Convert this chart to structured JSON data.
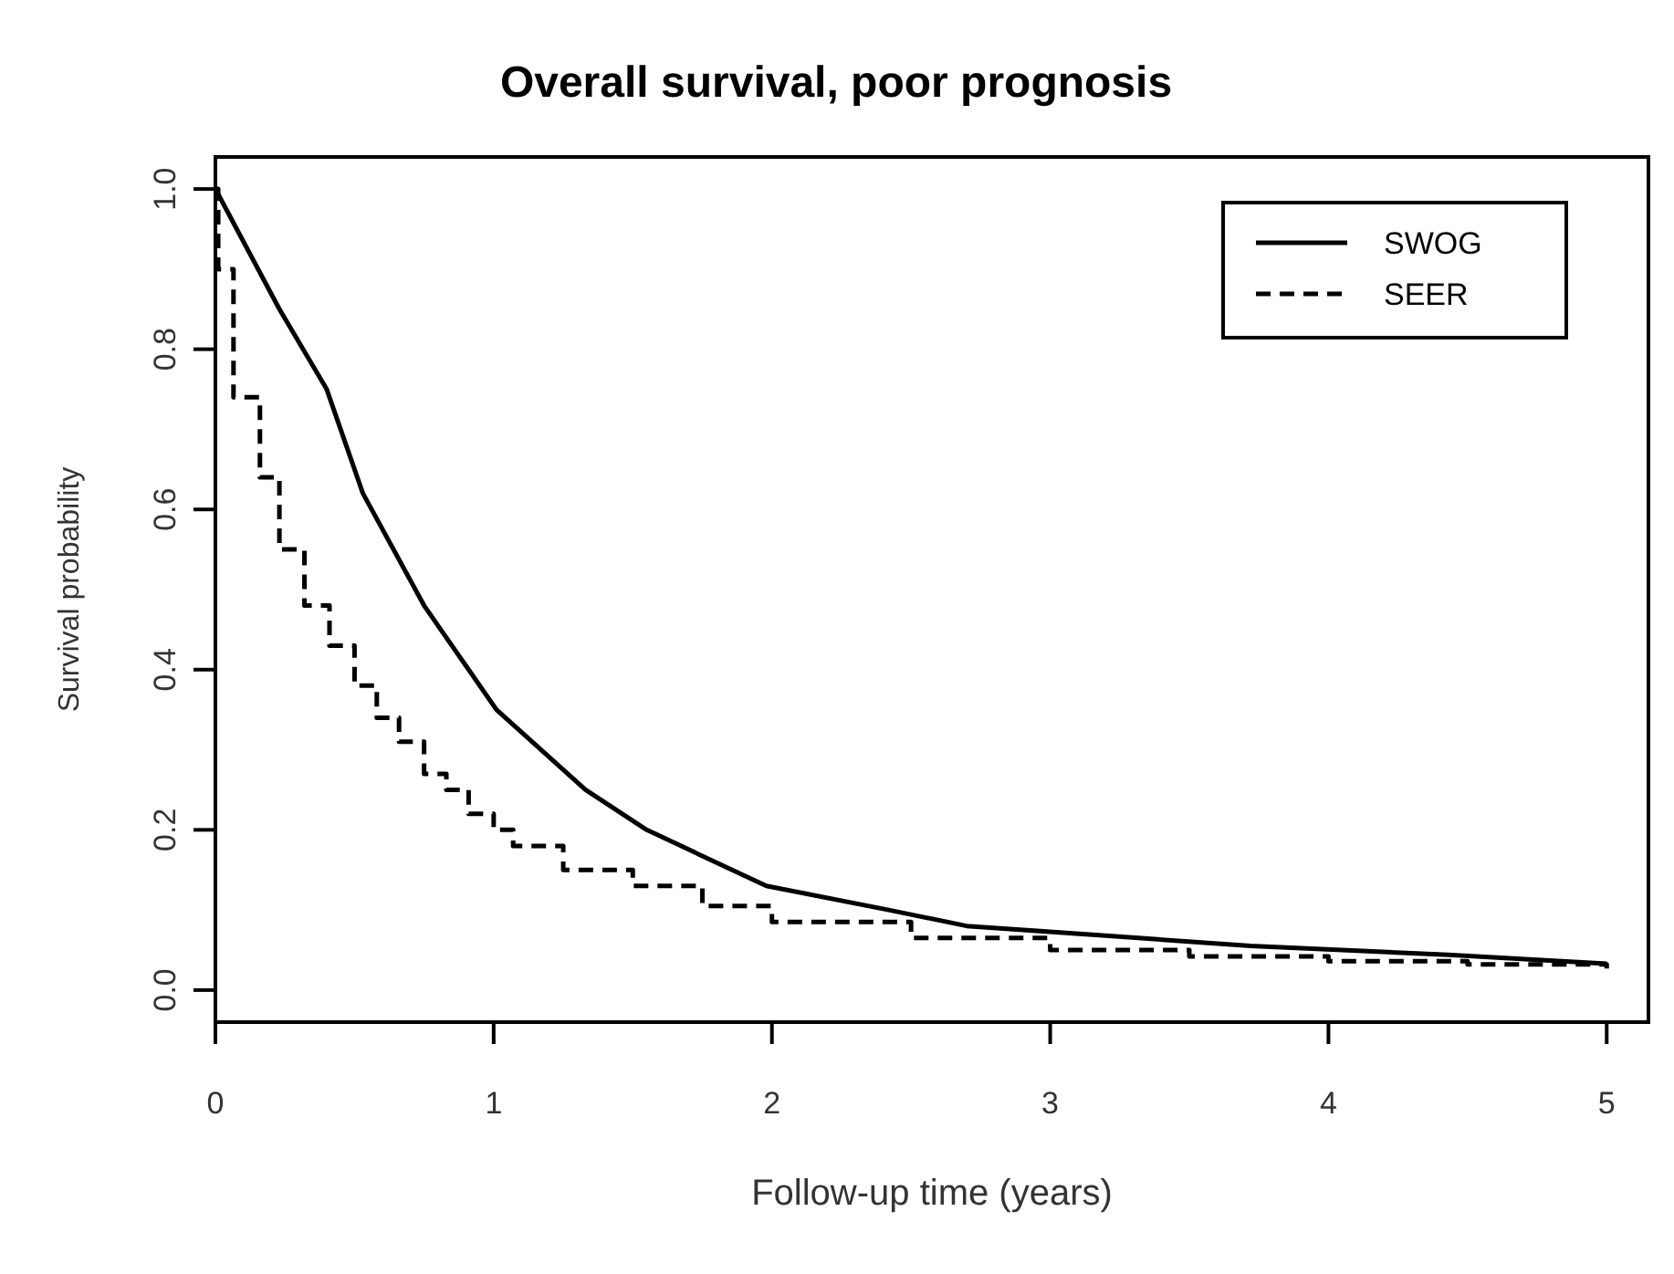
{
  "chart_data": {
    "type": "line",
    "title": "Overall survival, poor prognosis",
    "xlabel": "Follow-up time (years)",
    "ylabel": "Survival probability",
    "xlim": [
      0,
      5.15
    ],
    "ylim": [
      -0.04,
      1.04
    ],
    "xticks": [
      0,
      1,
      2,
      3,
      4,
      5
    ],
    "yticks": [
      {
        "value": 0,
        "label": "0.0"
      },
      {
        "value": 0.2,
        "label": "0.2"
      },
      {
        "value": 0.4,
        "label": "0.4"
      },
      {
        "value": 0.6,
        "label": "0.6"
      },
      {
        "value": 0.8,
        "label": "0.8"
      },
      {
        "value": 1,
        "label": "1.0"
      }
    ],
    "grid": false,
    "legend": "top right",
    "series": [
      {
        "name": "SWOG",
        "line_style": "solid",
        "color": "#000000",
        "x": [
          0,
          0.23,
          0.4,
          0.53,
          0.75,
          1.01,
          1.33,
          1.55,
          1.98,
          2.42,
          2.7,
          3.2,
          3.72,
          4.43,
          5.0
        ],
        "values": [
          1.0,
          0.85,
          0.75,
          0.62,
          0.48,
          0.35,
          0.25,
          0.2,
          0.13,
          0.1,
          0.08,
          0.068,
          0.055,
          0.044,
          0.033
        ]
      },
      {
        "name": "SEER",
        "type": "step",
        "line_style": "dashed",
        "color": "#000000",
        "x": [
          0,
          0.01,
          0.065,
          0.16,
          0.23,
          0.32,
          0.41,
          0.5,
          0.58,
          0.66,
          0.75,
          0.83,
          0.91,
          1.0,
          1.07,
          1.25,
          1.5,
          1.75,
          2.0,
          2.5,
          3.0,
          3.5,
          4.0,
          4.5,
          5.0
        ],
        "values": [
          1.0,
          0.9,
          0.74,
          0.64,
          0.55,
          0.48,
          0.43,
          0.38,
          0.34,
          0.31,
          0.27,
          0.25,
          0.22,
          0.2,
          0.18,
          0.15,
          0.13,
          0.105,
          0.085,
          0.065,
          0.05,
          0.042,
          0.036,
          0.032,
          0.027
        ]
      }
    ]
  }
}
